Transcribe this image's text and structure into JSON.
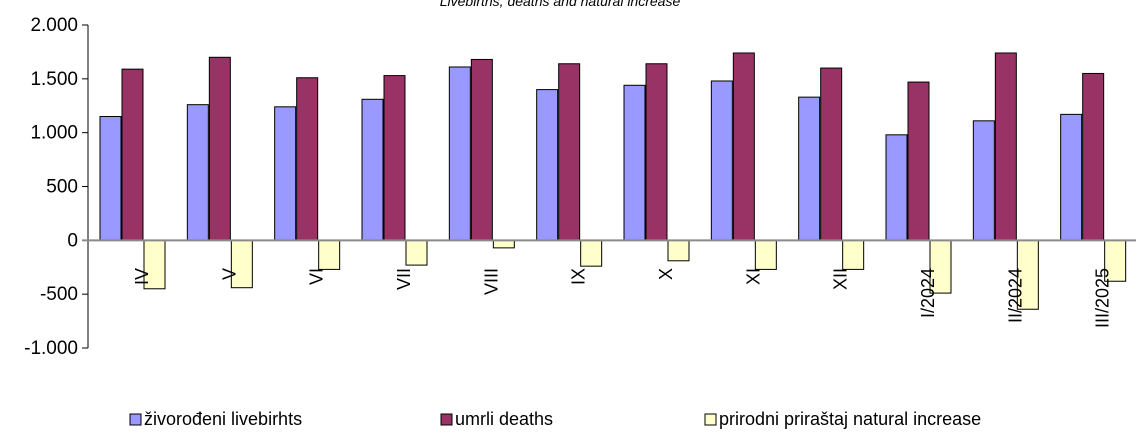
{
  "chart_data": {
    "type": "bar",
    "title": "Livebirths, deaths and natural increase",
    "xlabel": "",
    "ylabel": "",
    "ylim": [
      -1000,
      2000
    ],
    "yticks": [
      2000,
      1500,
      1000,
      500,
      0,
      -500,
      -1000
    ],
    "ytick_labels": [
      "2.000",
      "1.500",
      "1.000",
      "500",
      "0",
      "-500",
      "-1.000"
    ],
    "categories": [
      "IV",
      "V",
      "VI",
      "VII",
      "VIII",
      "IX",
      "X",
      "XI",
      "XII",
      "I/2024",
      "II/2024",
      "III/2025"
    ],
    "series": [
      {
        "name": "živorođeni livebirhts",
        "color": "#9999ff",
        "values": [
          1150,
          1260,
          1240,
          1310,
          1610,
          1400,
          1440,
          1480,
          1330,
          980,
          1110,
          1170
        ]
      },
      {
        "name": "umrli deaths",
        "color": "#993366",
        "values": [
          1590,
          1700,
          1510,
          1530,
          1680,
          1640,
          1640,
          1740,
          1600,
          1470,
          1740,
          1550
        ]
      },
      {
        "name": "prirodni priraštaj natural increase",
        "color": "#ffffcc",
        "values": [
          -450,
          -440,
          -270,
          -230,
          -70,
          -240,
          -190,
          -270,
          -270,
          -490,
          -640,
          -380
        ]
      }
    ],
    "grid": false,
    "legend_position": "bottom"
  }
}
